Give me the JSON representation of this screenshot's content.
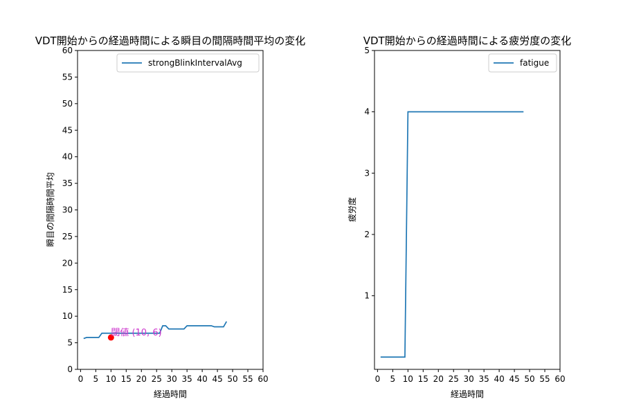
{
  "chart_data": [
    {
      "type": "line",
      "title": "VDT開始からの経過時間による瞬目の間隔時間平均の変化",
      "xlabel": "経過時間",
      "ylabel": "瞬目の間隔時間平均",
      "xlim": [
        -1,
        60
      ],
      "ylim": [
        0,
        60
      ],
      "xticks": [
        0,
        5,
        10,
        15,
        20,
        25,
        30,
        35,
        40,
        45,
        50,
        55,
        60
      ],
      "yticks": [
        0,
        5,
        10,
        15,
        20,
        25,
        30,
        35,
        40,
        45,
        50,
        55,
        60
      ],
      "legend": "upper right",
      "series": [
        {
          "name": "strongBlinkIntervalAvg",
          "color": "#1f77b4",
          "x": [
            1,
            2,
            3,
            4,
            5,
            6,
            7,
            8,
            9,
            10,
            11,
            12,
            13,
            14,
            15,
            16,
            17,
            18,
            19,
            20,
            21,
            22,
            23,
            24,
            25,
            26,
            27,
            28,
            29,
            30,
            31,
            32,
            33,
            34,
            35,
            36,
            37,
            38,
            39,
            40,
            41,
            42,
            43,
            44,
            45,
            46,
            47,
            48
          ],
          "y": [
            5.8,
            6.0,
            6.0,
            6.0,
            6.0,
            6.0,
            6.8,
            6.8,
            6.8,
            6.8,
            6.8,
            6.8,
            6.8,
            6.8,
            6.8,
            6.8,
            6.8,
            6.8,
            6.8,
            6.8,
            6.8,
            6.8,
            6.8,
            6.8,
            6.8,
            6.8,
            8.2,
            8.2,
            7.6,
            7.6,
            7.6,
            7.6,
            7.6,
            7.6,
            8.2,
            8.2,
            8.2,
            8.2,
            8.2,
            8.2,
            8.2,
            8.2,
            8.2,
            8.0,
            8.0,
            8.0,
            8.0,
            9.0
          ]
        }
      ],
      "annotation": {
        "point": [
          10,
          6
        ],
        "color": "#ff0000",
        "label": "閾値 (10, 6)",
        "label_color": "#cc33cc"
      }
    },
    {
      "type": "line",
      "title": "VDT開始からの経過時間による疲労度の変化",
      "xlabel": "経過時間",
      "ylabel": "疲労度",
      "xlim": [
        -1,
        60
      ],
      "ylim": [
        -0.2,
        5
      ],
      "xticks": [
        0,
        5,
        10,
        15,
        20,
        25,
        30,
        35,
        40,
        45,
        50,
        55,
        60
      ],
      "yticks": [
        1,
        2,
        3,
        4,
        5
      ],
      "legend": "upper right",
      "series": [
        {
          "name": "fatigue",
          "color": "#1f77b4",
          "x": [
            1,
            2,
            3,
            4,
            5,
            6,
            7,
            8,
            9,
            10,
            11,
            12,
            13,
            14,
            15,
            16,
            17,
            18,
            19,
            20,
            21,
            22,
            23,
            24,
            25,
            26,
            27,
            28,
            29,
            30,
            31,
            32,
            33,
            34,
            35,
            36,
            37,
            38,
            39,
            40,
            41,
            42,
            43,
            44,
            45,
            46,
            47,
            48
          ],
          "y": [
            0,
            0,
            0,
            0,
            0,
            0,
            0,
            0,
            0,
            4,
            4,
            4,
            4,
            4,
            4,
            4,
            4,
            4,
            4,
            4,
            4,
            4,
            4,
            4,
            4,
            4,
            4,
            4,
            4,
            4,
            4,
            4,
            4,
            4,
            4,
            4,
            4,
            4,
            4,
            4,
            4,
            4,
            4,
            4,
            4,
            4,
            4,
            4
          ]
        }
      ]
    }
  ]
}
